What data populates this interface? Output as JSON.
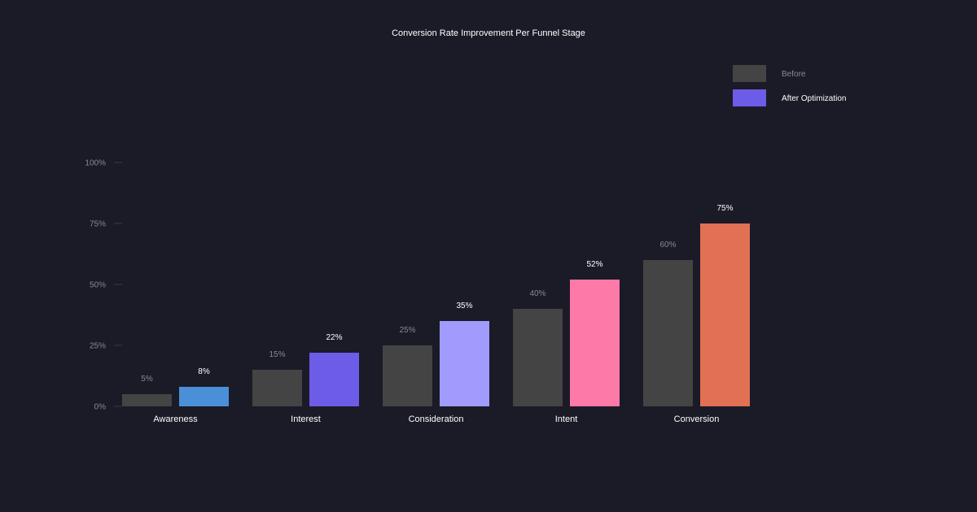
{
  "chart_data": {
    "type": "bar",
    "title": "Conversion Rate Improvement Per Funnel Stage",
    "categories": [
      "Awareness",
      "Interest",
      "Consideration",
      "Intent",
      "Conversion"
    ],
    "series": [
      {
        "name": "Before",
        "values": [
          5,
          15,
          25,
          40,
          60
        ],
        "labels": [
          "5%",
          "15%",
          "25%",
          "40%",
          "60%"
        ]
      },
      {
        "name": "After Optimization",
        "values": [
          8,
          22,
          35,
          52,
          75
        ],
        "labels": [
          "8%",
          "22%",
          "35%",
          "52%",
          "75%"
        ]
      }
    ],
    "colors": {
      "before": "#444444",
      "after": [
        "#4a90d9",
        "#6c5ce7",
        "#a29bfe",
        "#fd79a8",
        "#e17055"
      ]
    },
    "yticks": [
      "0%",
      "25%",
      "50%",
      "75%",
      "100%"
    ],
    "ytick_values": [
      0,
      25,
      50,
      75,
      100
    ],
    "ylim": [
      0,
      100
    ],
    "xlabel": "",
    "ylabel": "",
    "legend_position": "top-right"
  }
}
